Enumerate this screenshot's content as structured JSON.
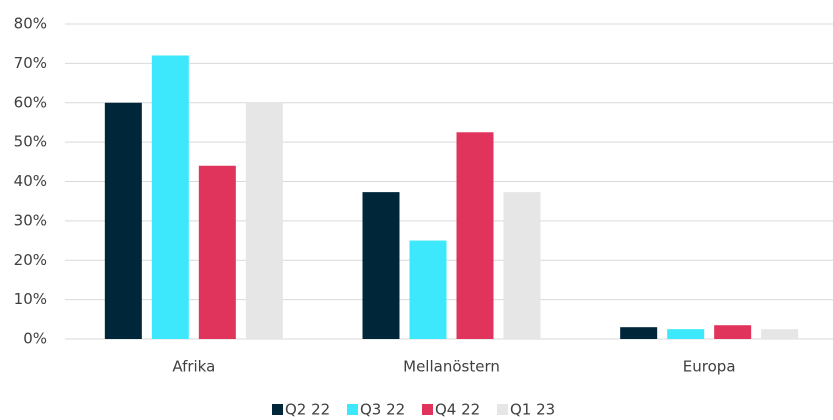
{
  "chart_data": {
    "type": "bar",
    "categories": [
      "Afrika",
      "Mellanöstern",
      "Europa"
    ],
    "series": [
      {
        "name": "Q2 22",
        "color": "#00263a",
        "values": [
          60,
          37.3,
          3
        ]
      },
      {
        "name": "Q3 22",
        "color": "#3de8fc",
        "values": [
          72,
          25,
          2.5
        ]
      },
      {
        "name": "Q4 22",
        "color": "#e0345c",
        "values": [
          44,
          52.5,
          3.5
        ]
      },
      {
        "name": "Q1 23",
        "color": "#e6e6e6",
        "values": [
          60,
          37.3,
          2.5
        ]
      }
    ],
    "ylim": [
      0,
      80
    ],
    "yticks": [
      {
        "value": 0,
        "label": "0%"
      },
      {
        "value": 10,
        "label": "10%"
      },
      {
        "value": 20,
        "label": "20%"
      },
      {
        "value": 30,
        "label": "30%"
      },
      {
        "value": 40,
        "label": "40%"
      },
      {
        "value": 50,
        "label": "50%"
      },
      {
        "value": 60,
        "label": "60%"
      },
      {
        "value": 70,
        "label": "70%"
      },
      {
        "value": 80,
        "label": "80%"
      }
    ],
    "grid": true,
    "legend": "bottom"
  }
}
